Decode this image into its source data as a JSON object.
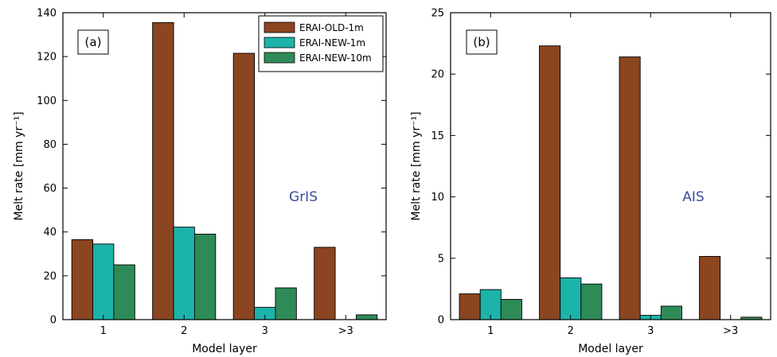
{
  "colors": {
    "ERAI-OLD-1m": "#8b4520",
    "ERAI-NEW-1m": "#1bb3aa",
    "ERAI-NEW-10m": "#2e8b57",
    "region_label": "#3b4ba0"
  },
  "chart_data": [
    {
      "type": "bar",
      "panel_label": "(a)",
      "region_label": "GrIS",
      "xlabel": "Model layer",
      "ylabel": "Melt rate [mm yr⁻¹]",
      "categories": [
        "1",
        "2",
        "3",
        ">3"
      ],
      "ylim": [
        0,
        140
      ],
      "yticks": [
        "0",
        "20",
        "40",
        "60",
        "80",
        "100",
        "120",
        "140"
      ],
      "legend_position": "top-right",
      "series": [
        {
          "name": "ERAI-OLD-1m",
          "values": [
            36.5,
            135.5,
            121.5,
            33
          ]
        },
        {
          "name": "ERAI-NEW-1m",
          "values": [
            34.5,
            42.2,
            5.6,
            0
          ]
        },
        {
          "name": "ERAI-NEW-10m",
          "values": [
            25,
            39,
            14.5,
            2.2
          ]
        }
      ]
    },
    {
      "type": "bar",
      "panel_label": "(b)",
      "region_label": "AIS",
      "xlabel": "Model layer",
      "ylabel": "Melt rate [mm yr⁻¹]",
      "categories": [
        "1",
        "2",
        "3",
        ">3"
      ],
      "ylim": [
        0,
        25
      ],
      "yticks": [
        "0",
        "5",
        "10",
        "15",
        "20",
        "25"
      ],
      "series": [
        {
          "name": "ERAI-OLD-1m",
          "values": [
            2.1,
            22.3,
            21.4,
            5.15
          ]
        },
        {
          "name": "ERAI-NEW-1m",
          "values": [
            2.45,
            3.4,
            0.35,
            0
          ]
        },
        {
          "name": "ERAI-NEW-10m",
          "values": [
            1.65,
            2.9,
            1.1,
            0.2
          ]
        }
      ]
    }
  ]
}
